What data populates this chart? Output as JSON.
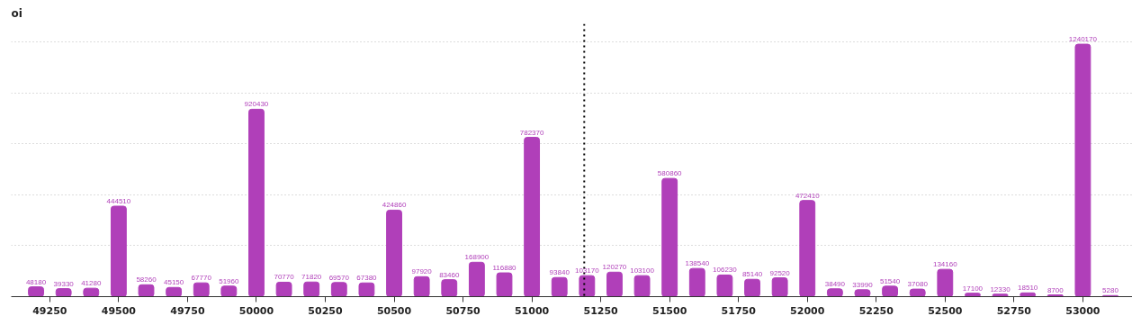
{
  "chart_data": {
    "type": "bar",
    "ylabel": "oi",
    "x": [
      49200,
      49300,
      49400,
      49500,
      49600,
      49700,
      49800,
      49900,
      50000,
      50100,
      50200,
      50300,
      50400,
      50500,
      50600,
      50700,
      50800,
      50900,
      51000,
      51100,
      51200,
      51300,
      51400,
      51500,
      51600,
      51700,
      51800,
      51900,
      52000,
      52100,
      52200,
      52300,
      52400,
      52500,
      52600,
      52700,
      52800,
      52900,
      53000,
      53100
    ],
    "values": [
      48180,
      39330,
      41280,
      444510,
      58260,
      45150,
      67770,
      51960,
      920430,
      70770,
      71820,
      69570,
      67380,
      424860,
      97920,
      83460,
      168900,
      116880,
      782370,
      93840,
      103170,
      120270,
      103100,
      580860,
      138540,
      106230,
      85140,
      92520,
      472410,
      38490,
      33990,
      51540,
      37080,
      134160,
      17100,
      12330,
      18510,
      8700,
      1240170,
      5280
    ],
    "color": "#b03fb9",
    "data_labels": true,
    "xlim": [
      49110,
      53180
    ],
    "xticks": [
      49250,
      49500,
      49750,
      50000,
      50250,
      50500,
      50750,
      51000,
      51250,
      51500,
      51750,
      52000,
      52250,
      52500,
      52750,
      53000
    ],
    "ylim": [
      0,
      1340000
    ],
    "yticks": [
      {
        "value": 250000,
        "label": null
      },
      {
        "value": 500000,
        "label": null
      },
      {
        "value": 750000,
        "label": null
      },
      {
        "value": 1000000,
        "label": null
      },
      {
        "value": 1250000,
        "label": null
      }
    ],
    "tick_labels": "x",
    "grid": "y",
    "ref_lines": [
      {
        "axis": "x",
        "value": 51190,
        "color": "#000000",
        "line_style": "dotted"
      }
    ]
  }
}
